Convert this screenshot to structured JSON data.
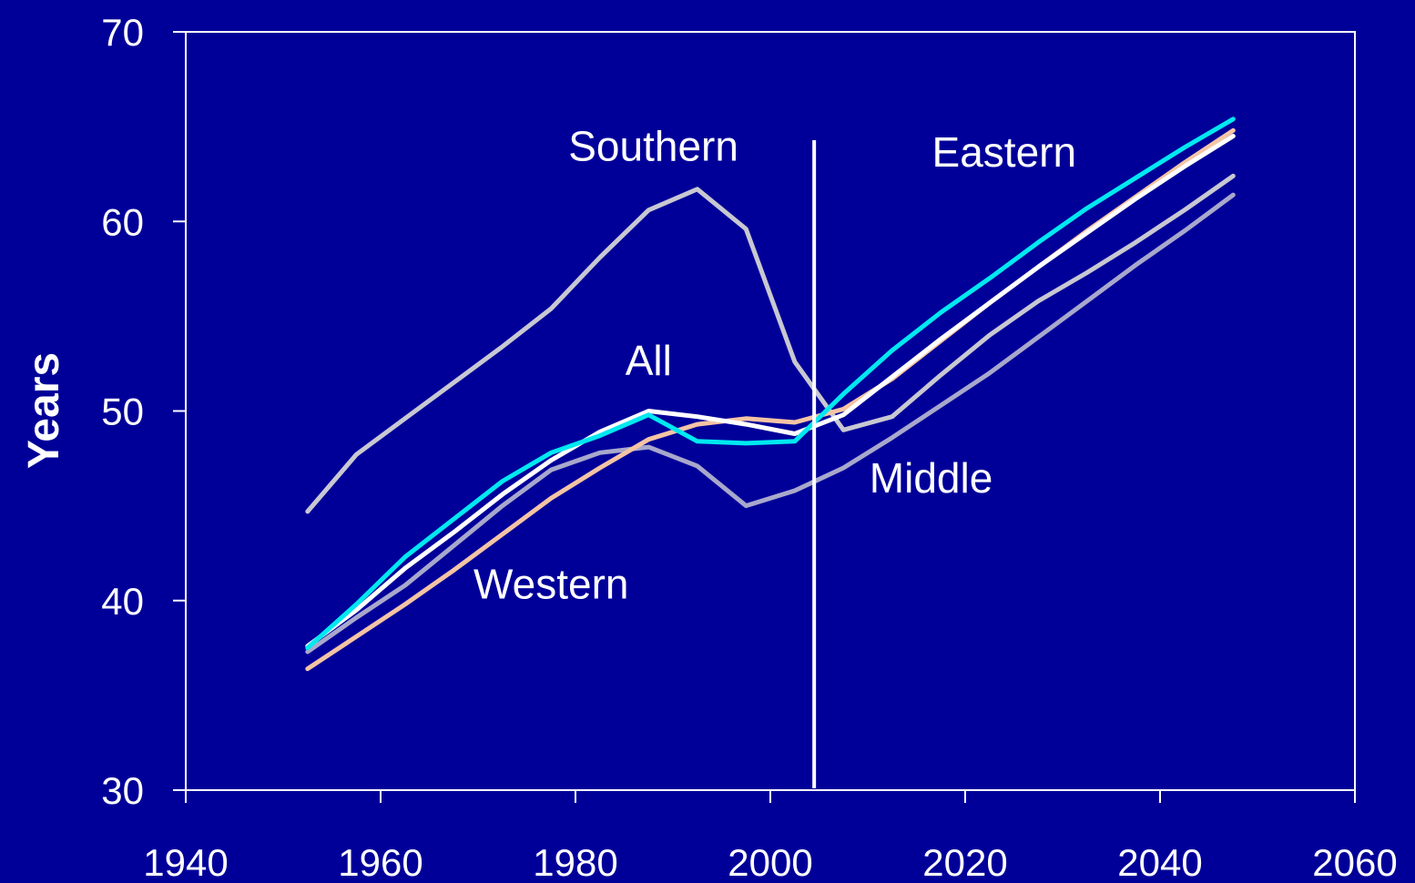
{
  "chart_data": {
    "type": "line",
    "title": "",
    "xlabel": "",
    "ylabel": "Years",
    "xlim": [
      1940,
      2060
    ],
    "ylim": [
      30,
      70
    ],
    "xticks": [
      "1940",
      "1960",
      "1980",
      "2000",
      "2020",
      "2040",
      "2060"
    ],
    "yticks": [
      "30",
      "40",
      "50",
      "60",
      "70"
    ],
    "grid": false,
    "legend": "none",
    "background": "#000099",
    "reference_line_x": 2004.5,
    "x": [
      1952.5,
      1957.5,
      1962.5,
      1967.5,
      1972.5,
      1977.5,
      1982.5,
      1987.5,
      1992.5,
      1997.5,
      2002.5,
      2007.5,
      2012.5,
      2017.5,
      2022.5,
      2027.5,
      2032.5,
      2037.5,
      2042.5,
      2047.5
    ],
    "series": [
      {
        "name": "Southern",
        "color": "#c8c8d2",
        "values": [
          44.7,
          47.7,
          49.6,
          51.5,
          53.4,
          55.4,
          58.1,
          60.6,
          61.7,
          59.6,
          52.6,
          49.0,
          49.7,
          51.9,
          54.0,
          55.8,
          57.3,
          58.9,
          60.6,
          62.4
        ]
      },
      {
        "name": "Middle",
        "color": "#a8a8cc",
        "values": [
          37.3,
          39.1,
          40.8,
          42.9,
          45.0,
          46.9,
          47.8,
          48.1,
          47.1,
          45.0,
          45.8,
          47.0,
          48.6,
          50.3,
          52.0,
          53.9,
          55.8,
          57.7,
          59.5,
          61.4
        ]
      },
      {
        "name": "Western",
        "color": "#f4c4a4",
        "values": [
          36.4,
          38.1,
          39.8,
          41.6,
          43.5,
          45.4,
          47.0,
          48.5,
          49.3,
          49.6,
          49.4,
          50.1,
          51.7,
          53.7,
          55.7,
          57.6,
          59.5,
          61.3,
          63.1,
          64.8
        ]
      },
      {
        "name": "All",
        "color": "#ffffff",
        "values": [
          37.6,
          39.5,
          41.7,
          43.6,
          45.6,
          47.4,
          48.9,
          50.0,
          49.7,
          49.3,
          48.8,
          49.8,
          51.8,
          53.8,
          55.7,
          57.6,
          59.4,
          61.2,
          62.9,
          64.5
        ]
      },
      {
        "name": "Eastern",
        "color": "#00e8f0",
        "values": [
          37.5,
          39.8,
          42.3,
          44.3,
          46.3,
          47.8,
          48.7,
          49.8,
          48.4,
          48.3,
          48.4,
          50.9,
          53.2,
          55.2,
          57.0,
          58.9,
          60.7,
          62.3,
          63.9,
          65.4
        ]
      }
    ],
    "annotations": [
      {
        "text": "Southern",
        "x": 1988,
        "y": 63.2
      },
      {
        "text": "Eastern",
        "x": 2024,
        "y": 62.9
      },
      {
        "text": "All",
        "x": 1987.5,
        "y": 51.9
      },
      {
        "text": "Middle",
        "x": 2016.5,
        "y": 45.7
      },
      {
        "text": "Western",
        "x": 1977.5,
        "y": 40.1
      }
    ]
  }
}
